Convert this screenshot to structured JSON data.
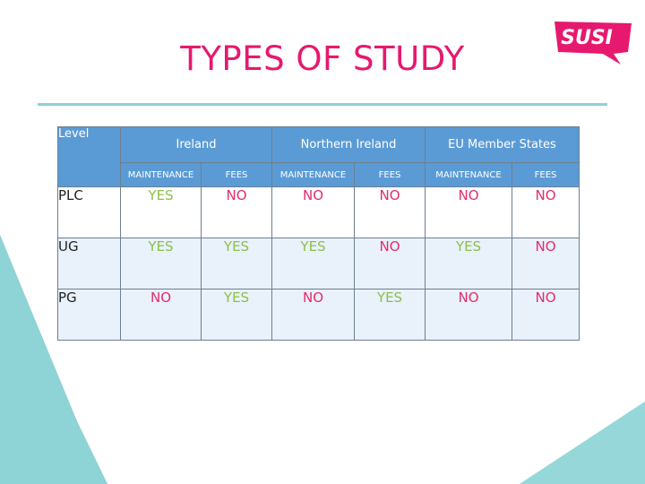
{
  "title": "TYPES OF STUDY",
  "logo_text": "SUSI",
  "colors": {
    "title": "#e6196e",
    "logo": "#e6196e",
    "teal_accent": "#8ecfd6",
    "header_blue": "#5b9bd5",
    "yes_green": "#8cc04a",
    "no_pink": "#e52b6f"
  },
  "table": {
    "level_header": "Level",
    "groups": [
      "Ireland",
      "Northern Ireland",
      "EU Member States"
    ],
    "subheaders": [
      "MAINTENANCE",
      "FEES",
      "MAINTENANCE",
      "FEES",
      "MAINTENANCE",
      "FEES"
    ],
    "rows": [
      {
        "level": "PLC",
        "values": [
          "YES",
          "NO",
          "NO",
          "NO",
          "NO",
          "NO"
        ]
      },
      {
        "level": "UG",
        "values": [
          "YES",
          "YES",
          "YES",
          "NO",
          "YES",
          "NO"
        ]
      },
      {
        "level": "PG",
        "values": [
          "NO",
          "YES",
          "NO",
          "YES",
          "NO",
          "NO"
        ]
      }
    ]
  }
}
